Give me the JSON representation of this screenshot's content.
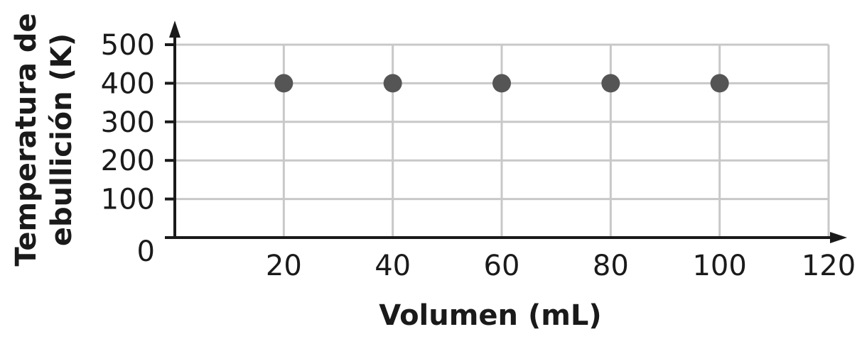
{
  "chart_data": {
    "type": "scatter",
    "title": "",
    "xlabel": "Volumen (mL)",
    "ylabel_lines": [
      "Temperatura de",
      "ebullición (K)"
    ],
    "xlim": [
      0,
      120
    ],
    "ylim": [
      0,
      500
    ],
    "x_ticks": [
      20,
      40,
      60,
      80,
      100,
      120
    ],
    "y_ticks": [
      0,
      100,
      200,
      300,
      400,
      500
    ],
    "x_tick_labels": [
      "20",
      "40",
      "60",
      "80",
      "100",
      "120"
    ],
    "y_tick_labels": [
      "0",
      "100",
      "200",
      "300",
      "400",
      "500"
    ],
    "grid": true,
    "points": [
      {
        "x": 20,
        "y": 400
      },
      {
        "x": 40,
        "y": 400
      },
      {
        "x": 60,
        "y": 400
      },
      {
        "x": 80,
        "y": 400
      },
      {
        "x": 100,
        "y": 400
      }
    ],
    "colors": {
      "point": "#555555",
      "axis": "#1a1a1a",
      "grid": "#c8c8c8"
    }
  }
}
